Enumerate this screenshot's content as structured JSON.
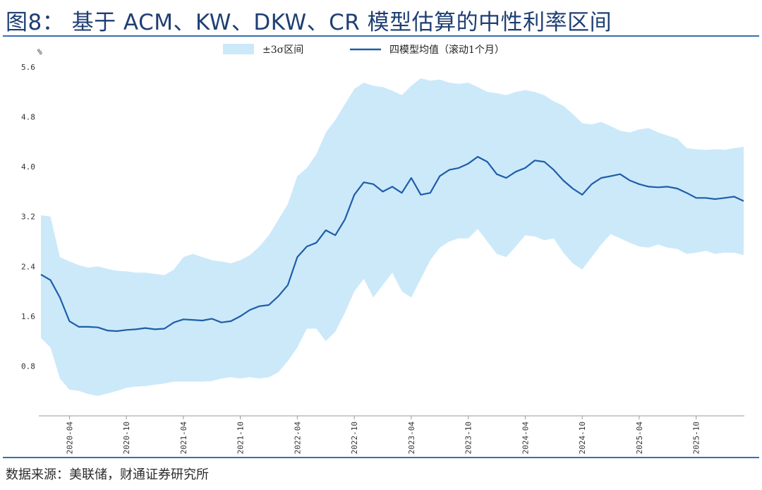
{
  "figure": {
    "title": "图8： 基于 ACM、KW、DKW、CR 模型估算的中性利率区间",
    "source": "数据来源：美联储，财通证券研究所"
  },
  "chart_data": {
    "type": "area",
    "unit_label": "%",
    "ylim": [
      0,
      5.6
    ],
    "y_ticks": [
      0.8,
      1.6,
      2.4,
      3.2,
      4.0,
      4.8,
      5.6
    ],
    "y_tick_labels": [
      "0.8",
      "1.6",
      "2.4",
      "3.2",
      "4.0",
      "4.8",
      "5.6"
    ],
    "x_ticks": [
      "2020-04",
      "2020-10",
      "2021-04",
      "2021-10",
      "2022-04",
      "2022-10",
      "2023-04",
      "2023-10",
      "2024-04",
      "2024-10",
      "2025-04",
      "2025-10"
    ],
    "xlim": [
      "2020-01",
      "2026-03"
    ],
    "grid": false,
    "legend_position": "top",
    "colors": {
      "band": "#cce9fa",
      "line": "#1e5ea8"
    },
    "series": [
      {
        "name": "±3σ区间",
        "kind": "band",
        "x": [
          "2020-01",
          "2020-02",
          "2020-03",
          "2020-04",
          "2020-05",
          "2020-06",
          "2020-07",
          "2020-08",
          "2020-09",
          "2020-10",
          "2020-11",
          "2020-12",
          "2021-01",
          "2021-02",
          "2021-03",
          "2021-04",
          "2021-05",
          "2021-06",
          "2021-07",
          "2021-08",
          "2021-09",
          "2021-10",
          "2021-11",
          "2021-12",
          "2022-01",
          "2022-02",
          "2022-03",
          "2022-04",
          "2022-05",
          "2022-06",
          "2022-07",
          "2022-08",
          "2022-09",
          "2022-10",
          "2022-11",
          "2022-12",
          "2023-01",
          "2023-02",
          "2023-03",
          "2023-04",
          "2023-05",
          "2023-06",
          "2023-07",
          "2023-08",
          "2023-09",
          "2023-10",
          "2023-11",
          "2023-12",
          "2024-01",
          "2024-02",
          "2024-03",
          "2024-04",
          "2024-05",
          "2024-06",
          "2024-07",
          "2024-08",
          "2024-09",
          "2024-10",
          "2024-11",
          "2024-12",
          "2025-01",
          "2025-02",
          "2025-03",
          "2025-04",
          "2025-05",
          "2025-06",
          "2025-07",
          "2025-08",
          "2025-09",
          "2025-10",
          "2025-11",
          "2025-12",
          "2026-01",
          "2026-02",
          "2026-03"
        ],
        "upper": [
          3.22,
          3.2,
          2.55,
          2.48,
          2.42,
          2.38,
          2.4,
          2.36,
          2.33,
          2.32,
          2.3,
          2.3,
          2.28,
          2.26,
          2.35,
          2.55,
          2.6,
          2.55,
          2.5,
          2.48,
          2.45,
          2.5,
          2.58,
          2.72,
          2.9,
          3.15,
          3.4,
          3.85,
          3.98,
          4.2,
          4.55,
          4.75,
          5.0,
          5.25,
          5.35,
          5.3,
          5.28,
          5.22,
          5.15,
          5.3,
          5.42,
          5.38,
          5.4,
          5.35,
          5.33,
          5.35,
          5.28,
          5.2,
          5.18,
          5.15,
          5.2,
          5.23,
          5.2,
          5.15,
          5.05,
          4.98,
          4.85,
          4.7,
          4.68,
          4.72,
          4.65,
          4.58,
          4.55,
          4.6,
          4.62,
          4.55,
          4.5,
          4.45,
          4.3,
          4.28,
          4.27,
          4.28,
          4.27,
          4.3,
          4.32
        ],
        "lower": [
          1.25,
          1.1,
          0.6,
          0.42,
          0.4,
          0.35,
          0.32,
          0.36,
          0.4,
          0.45,
          0.47,
          0.48,
          0.5,
          0.52,
          0.55,
          0.55,
          0.55,
          0.55,
          0.56,
          0.6,
          0.62,
          0.6,
          0.62,
          0.6,
          0.62,
          0.7,
          0.88,
          1.1,
          1.4,
          1.4,
          1.2,
          1.35,
          1.65,
          2.0,
          2.2,
          1.9,
          2.1,
          2.3,
          2.0,
          1.9,
          2.2,
          2.5,
          2.7,
          2.8,
          2.85,
          2.85,
          3.0,
          2.8,
          2.6,
          2.55,
          2.72,
          2.9,
          2.88,
          2.82,
          2.85,
          2.62,
          2.45,
          2.35,
          2.55,
          2.75,
          2.92,
          2.85,
          2.78,
          2.72,
          2.7,
          2.75,
          2.7,
          2.68,
          2.6,
          2.62,
          2.65,
          2.6,
          2.62,
          2.62,
          2.58
        ]
      },
      {
        "name": "四模型均值（滚动1个月）",
        "kind": "line",
        "x": [
          "2020-01",
          "2020-02",
          "2020-03",
          "2020-04",
          "2020-05",
          "2020-06",
          "2020-07",
          "2020-08",
          "2020-09",
          "2020-10",
          "2020-11",
          "2020-12",
          "2021-01",
          "2021-02",
          "2021-03",
          "2021-04",
          "2021-05",
          "2021-06",
          "2021-07",
          "2021-08",
          "2021-09",
          "2021-10",
          "2021-11",
          "2021-12",
          "2022-01",
          "2022-02",
          "2022-03",
          "2022-04",
          "2022-05",
          "2022-06",
          "2022-07",
          "2022-08",
          "2022-09",
          "2022-10",
          "2022-11",
          "2022-12",
          "2023-01",
          "2023-02",
          "2023-03",
          "2023-04",
          "2023-05",
          "2023-06",
          "2023-07",
          "2023-08",
          "2023-09",
          "2023-10",
          "2023-11",
          "2023-12",
          "2024-01",
          "2024-02",
          "2024-03",
          "2024-04",
          "2024-05",
          "2024-06",
          "2024-07",
          "2024-08",
          "2024-09",
          "2024-10",
          "2024-11",
          "2024-12",
          "2025-01",
          "2025-02",
          "2025-03",
          "2025-04",
          "2025-05",
          "2025-06",
          "2025-07",
          "2025-08",
          "2025-09",
          "2025-10",
          "2025-11",
          "2025-12",
          "2026-01",
          "2026-02",
          "2026-03"
        ],
        "values": [
          2.27,
          2.18,
          1.9,
          1.52,
          1.43,
          1.43,
          1.42,
          1.37,
          1.36,
          1.38,
          1.39,
          1.41,
          1.39,
          1.4,
          1.5,
          1.55,
          1.54,
          1.53,
          1.56,
          1.5,
          1.52,
          1.6,
          1.7,
          1.76,
          1.78,
          1.92,
          2.1,
          2.55,
          2.72,
          2.78,
          2.98,
          2.9,
          3.15,
          3.55,
          3.75,
          3.72,
          3.6,
          3.68,
          3.58,
          3.82,
          3.55,
          3.58,
          3.85,
          3.95,
          3.98,
          4.05,
          4.16,
          4.08,
          3.88,
          3.82,
          3.92,
          3.98,
          4.1,
          4.08,
          3.95,
          3.78,
          3.65,
          3.55,
          3.72,
          3.82,
          3.85,
          3.88,
          3.78,
          3.72,
          3.68,
          3.67,
          3.68,
          3.65,
          3.58,
          3.5,
          3.5,
          3.48,
          3.5,
          3.52,
          3.45
        ]
      }
    ]
  }
}
